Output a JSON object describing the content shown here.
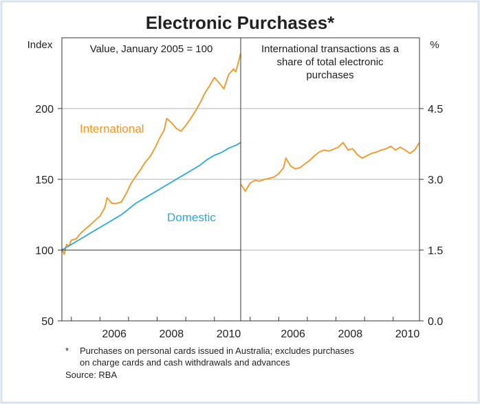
{
  "chart_data": {
    "type": "line",
    "title": "Electronic Purchases*",
    "panels": [
      {
        "subtitle": [
          "Value, January 2005 = 100"
        ],
        "y_unit_label": "Index",
        "ylim": [
          50,
          250
        ],
        "yticks": [
          "50",
          "100",
          "150",
          "200"
        ],
        "xlim": [
          2004.67,
          2010.92
        ],
        "xticks": [
          "2006",
          "2008",
          "2010"
        ],
        "series": [
          {
            "name": "International",
            "color": "#f7941d",
            "points": [
              [
                2004.67,
                101
              ],
              [
                2004.75,
                97
              ],
              [
                2004.83,
                104
              ],
              [
                2004.92,
                103
              ],
              [
                2005.0,
                107
              ],
              [
                2005.17,
                108
              ],
              [
                2005.33,
                112
              ],
              [
                2005.5,
                115
              ],
              [
                2005.67,
                118
              ],
              [
                2005.83,
                121
              ],
              [
                2006.0,
                124
              ],
              [
                2006.17,
                130
              ],
              [
                2006.25,
                137
              ],
              [
                2006.42,
                133
              ],
              [
                2006.58,
                133
              ],
              [
                2006.75,
                134
              ],
              [
                2006.92,
                140
              ],
              [
                2007.08,
                147
              ],
              [
                2007.25,
                152
              ],
              [
                2007.42,
                157
              ],
              [
                2007.58,
                162
              ],
              [
                2007.75,
                166
              ],
              [
                2007.92,
                172
              ],
              [
                2008.08,
                179
              ],
              [
                2008.25,
                185
              ],
              [
                2008.33,
                193
              ],
              [
                2008.5,
                190
              ],
              [
                2008.67,
                186
              ],
              [
                2008.83,
                184
              ],
              [
                2009.0,
                188
              ],
              [
                2009.17,
                193
              ],
              [
                2009.33,
                198
              ],
              [
                2009.5,
                204
              ],
              [
                2009.67,
                211
              ],
              [
                2009.83,
                216
              ],
              [
                2010.0,
                222
              ],
              [
                2010.17,
                218
              ],
              [
                2010.33,
                214
              ],
              [
                2010.5,
                224
              ],
              [
                2010.67,
                228
              ],
              [
                2010.75,
                226
              ],
              [
                2010.83,
                232
              ],
              [
                2010.92,
                239
              ]
            ]
          },
          {
            "name": "Domestic",
            "color": "#29a9e0",
            "points": [
              [
                2004.67,
                100
              ],
              [
                2004.83,
                102
              ],
              [
                2005.0,
                104
              ],
              [
                2005.25,
                107
              ],
              [
                2005.5,
                110
              ],
              [
                2005.75,
                113
              ],
              [
                2006.0,
                116
              ],
              [
                2006.25,
                119
              ],
              [
                2006.5,
                122
              ],
              [
                2006.75,
                125
              ],
              [
                2007.0,
                129
              ],
              [
                2007.25,
                133
              ],
              [
                2007.5,
                136
              ],
              [
                2007.75,
                139
              ],
              [
                2008.0,
                142
              ],
              [
                2008.25,
                145
              ],
              [
                2008.5,
                148
              ],
              [
                2008.75,
                151
              ],
              [
                2009.0,
                154
              ],
              [
                2009.25,
                157
              ],
              [
                2009.5,
                160
              ],
              [
                2009.75,
                164
              ],
              [
                2010.0,
                167
              ],
              [
                2010.25,
                169
              ],
              [
                2010.5,
                172
              ],
              [
                2010.75,
                174
              ],
              [
                2010.92,
                176
              ]
            ]
          }
        ]
      },
      {
        "subtitle": [
          "International transactions as a",
          "share of total electronic",
          "purchases"
        ],
        "y_unit_label": "%",
        "ylim": [
          0.0,
          6.0
        ],
        "yticks": [
          "0.0",
          "1.5",
          "3.0",
          "4.5"
        ],
        "xlim": [
          2004.67,
          2010.92
        ],
        "xticks": [
          "2006",
          "2008",
          "2010"
        ],
        "series": [
          {
            "name": "International share",
            "color": "#f7941d",
            "points": [
              [
                2004.67,
                2.9
              ],
              [
                2004.83,
                2.75
              ],
              [
                2005.0,
                2.92
              ],
              [
                2005.17,
                2.98
              ],
              [
                2005.33,
                2.96
              ],
              [
                2005.5,
                3.0
              ],
              [
                2005.67,
                3.02
              ],
              [
                2005.83,
                3.05
              ],
              [
                2006.0,
                3.12
              ],
              [
                2006.17,
                3.25
              ],
              [
                2006.25,
                3.45
              ],
              [
                2006.42,
                3.28
              ],
              [
                2006.58,
                3.22
              ],
              [
                2006.75,
                3.25
              ],
              [
                2006.92,
                3.33
              ],
              [
                2007.08,
                3.4
              ],
              [
                2007.25,
                3.5
              ],
              [
                2007.42,
                3.58
              ],
              [
                2007.58,
                3.62
              ],
              [
                2007.75,
                3.6
              ],
              [
                2007.92,
                3.64
              ],
              [
                2008.08,
                3.68
              ],
              [
                2008.25,
                3.78
              ],
              [
                2008.42,
                3.62
              ],
              [
                2008.58,
                3.65
              ],
              [
                2008.75,
                3.52
              ],
              [
                2008.92,
                3.45
              ],
              [
                2009.08,
                3.5
              ],
              [
                2009.25,
                3.55
              ],
              [
                2009.42,
                3.58
              ],
              [
                2009.58,
                3.62
              ],
              [
                2009.75,
                3.65
              ],
              [
                2009.92,
                3.7
              ],
              [
                2010.08,
                3.62
              ],
              [
                2010.25,
                3.68
              ],
              [
                2010.42,
                3.62
              ],
              [
                2010.58,
                3.55
              ],
              [
                2010.75,
                3.62
              ],
              [
                2010.92,
                3.78
              ]
            ]
          }
        ]
      }
    ],
    "series_labels": {
      "International": "International",
      "Domestic": "Domestic"
    },
    "footnote": [
      "*",
      "Purchases on personal cards issued in Australia; excludes purchases",
      "on charge cards and cash withdrawals and advances"
    ],
    "source": "Source: RBA"
  }
}
